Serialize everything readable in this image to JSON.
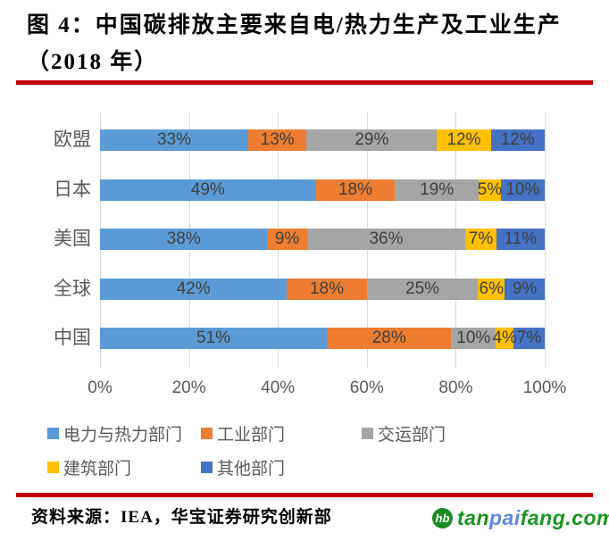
{
  "figure": {
    "title_line1": "图 4：中国碳排放主要来自电/热力生产及工业生产",
    "title_line2": "（2018 年）",
    "accent_rule_color": "#C00000",
    "source_note": "资料来源：IEA，华宝证券研究创新部",
    "watermark": {
      "icon": "tanpaifang-logo-icon",
      "icon_text": "hb",
      "icon_color": "#1b8a22",
      "text_parts": [
        {
          "text": "tan",
          "color": "#18951d"
        },
        {
          "text": "pai",
          "color": "#5e87e0"
        },
        {
          "text": "fang.com",
          "color": "#18951d"
        }
      ]
    }
  },
  "chart_data": {
    "type": "bar",
    "orientation": "horizontal",
    "stacked": true,
    "categories": [
      "欧盟",
      "日本",
      "美国",
      "全球",
      "中国"
    ],
    "series": [
      {
        "name": "电力与热力部门",
        "color": "#5B9BD5",
        "values": [
          33,
          49,
          38,
          42,
          51
        ]
      },
      {
        "name": "工业部门",
        "color": "#ED7D31",
        "values": [
          13,
          18,
          9,
          18,
          28
        ]
      },
      {
        "name": "交运部门",
        "color": "#A5A5A5",
        "values": [
          29,
          19,
          36,
          25,
          10
        ]
      },
      {
        "name": "建筑部门",
        "color": "#FFC000",
        "values": [
          12,
          5,
          7,
          6,
          4
        ]
      },
      {
        "name": "其他部门",
        "color": "#4472C4",
        "values": [
          12,
          10,
          11,
          9,
          7
        ]
      }
    ],
    "value_suffix": "%",
    "x_ticks": [
      "0%",
      "20%",
      "40%",
      "60%",
      "80%",
      "100%"
    ],
    "xlim": [
      0,
      100
    ],
    "grid": "vertical",
    "gridline_color": "#D9D9D9",
    "label_color": "#404040",
    "axis_text_color": "#595959",
    "legend_position": "bottom"
  }
}
